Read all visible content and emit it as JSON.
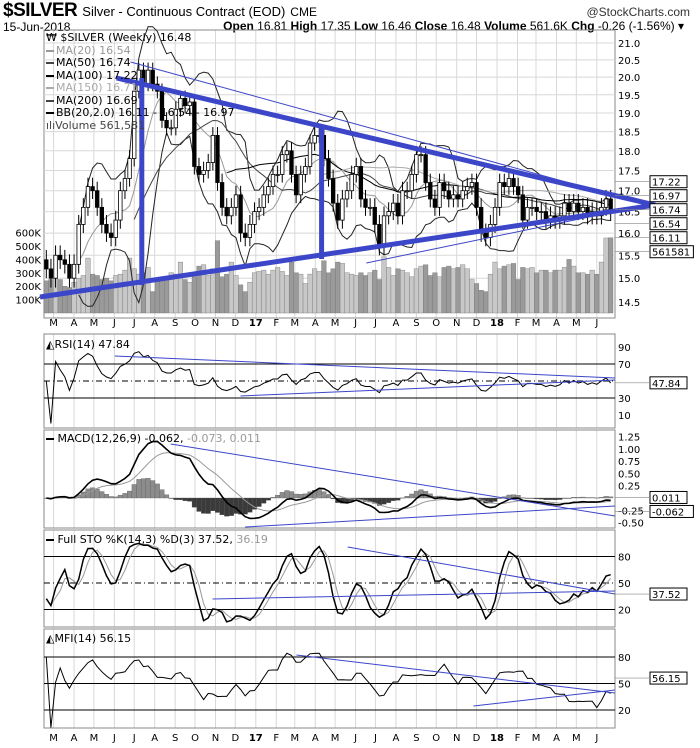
{
  "header": {
    "symbol": "$SILVER",
    "description": "Silver - Continuous Contract (EOD)",
    "exchange": "CME",
    "brand": "@StockCharts.com",
    "date": "15-Jun-2018",
    "open_label": "Open",
    "open": "16.81",
    "high_label": "High",
    "high": "17.35",
    "low_label": "Low",
    "low": "16.46",
    "close_label": "Close",
    "close": "16.48",
    "volume_label": "Volume",
    "volume": "561.6K",
    "chg_label": "Chg",
    "chg": "-0.26 (-1.56%)",
    "menu_icon": "caret-down-icon"
  },
  "legend": {
    "price": "$SILVER (Weekly) 16.48",
    "ma20": "MA(20) 16.54",
    "ma50": "MA(50) 16.74",
    "ma100": "MA(100) 17.22",
    "ma150": "MA(150) 16.71",
    "ma200": "MA(200) 16.69",
    "bb": "BB(20,2.0) 16.11 - 16.54 - 16.97",
    "volume": "Volume 561,581"
  },
  "colors": {
    "trendline": "#3c46c8",
    "grid": "#d8d8d8",
    "up": "#ffffff",
    "down": "#000000",
    "volume_light": "#c8c8c8",
    "volume_dark": "#9a9a9a",
    "macd_hist_pos": "#8c8c8c",
    "macd_hist_neg": "#3a3a3a"
  },
  "chart_data": [
    {
      "type": "candlestick",
      "title": "$SILVER Silver - Continuous Contract (EOD) CME",
      "frequency": "Weekly",
      "start_week": "2016-02-19",
      "end_week": "2018-06-15",
      "yscale": "log",
      "ylim": [
        14.3,
        21.3
      ],
      "price_ticks": [
        "14.5",
        "15.0",
        "15.5",
        "16.0",
        "16.5",
        "17.0",
        "17.5",
        "18.0",
        "18.5",
        "19.0",
        "19.5",
        "20.0",
        "20.5",
        "21.0"
      ],
      "volume_ticks": [
        "100K",
        "200K",
        "300K",
        "400K",
        "500K",
        "600K"
      ],
      "closes": [
        15.2,
        15.0,
        15.5,
        15.4,
        15.3,
        15.0,
        15.3,
        16.2,
        16.6,
        17.1,
        17.0,
        16.6,
        16.2,
        16.0,
        15.9,
        16.3,
        17.0,
        17.3,
        17.8,
        19.6,
        20.2,
        19.8,
        20.2,
        19.8,
        19.6,
        18.8,
        18.6,
        18.6,
        19.1,
        19.4,
        19.2,
        19.3,
        17.6,
        17.4,
        17.5,
        17.7,
        18.4,
        17.2,
        16.6,
        16.4,
        16.6,
        16.9,
        16.0,
        15.9,
        16.2,
        16.5,
        16.6,
        16.9,
        17.1,
        17.4,
        17.4,
        17.9,
        18.0,
        17.4,
        16.9,
        17.4,
        17.6,
        18.2,
        18.4,
        18.4,
        17.8,
        17.3,
        16.7,
        16.3,
        16.8,
        17.0,
        17.4,
        17.6,
        16.8,
        16.6,
        16.6,
        16.2,
        15.7,
        16.4,
        16.5,
        16.7,
        16.4,
        17.0,
        17.0,
        17.4,
        17.9,
        17.9,
        17.2,
        16.8,
        16.6,
        17.2,
        17.0,
        16.8,
        16.9,
        16.8,
        17.0,
        17.1,
        17.2,
        16.6,
        16.0,
        15.9,
        16.2,
        16.6,
        17.2,
        17.1,
        17.3,
        17.1,
        16.9,
        16.3,
        16.6,
        16.6,
        16.5,
        16.5,
        16.3,
        16.4,
        16.3,
        16.4,
        16.7,
        16.5,
        16.7,
        16.5,
        16.6,
        16.4,
        16.5,
        16.4,
        16.6,
        16.8,
        16.48
      ],
      "volume_k": [
        240,
        250,
        260,
        250,
        200,
        190,
        230,
        260,
        280,
        410,
        290,
        280,
        250,
        260,
        240,
        280,
        290,
        320,
        410,
        330,
        290,
        300,
        340,
        160,
        260,
        250,
        270,
        300,
        290,
        380,
        250,
        230,
        270,
        350,
        360,
        280,
        330,
        540,
        270,
        290,
        380,
        280,
        210,
        160,
        230,
        300,
        310,
        320,
        290,
        320,
        340,
        310,
        280,
        380,
        300,
        290,
        220,
        290,
        330,
        310,
        390,
        300,
        330,
        380,
        370,
        300,
        290,
        280,
        300,
        280,
        300,
        320,
        250,
        420,
        340,
        280,
        330,
        320,
        300,
        270,
        330,
        350,
        360,
        280,
        300,
        270,
        340,
        350,
        330,
        340,
        360,
        330,
        250,
        220,
        170,
        160,
        290,
        380,
        330,
        350,
        360,
        370,
        250,
        340,
        330,
        340,
        300,
        320,
        320,
        300,
        320,
        320,
        340,
        400,
        350,
        300,
        300,
        290,
        320,
        290,
        380,
        560,
        561.6
      ],
      "last_value_tags": [
        "17.22",
        "16.97",
        "16.74",
        "16.54",
        "16.11",
        "561581"
      ],
      "months": [
        [
          "2016-03-01",
          "M"
        ],
        [
          "2016-04-01",
          "A"
        ],
        [
          "2016-05-01",
          "M"
        ],
        [
          "2016-06-01",
          "J"
        ],
        [
          "2016-07-01",
          "J"
        ],
        [
          "2016-08-01",
          "A"
        ],
        [
          "2016-09-01",
          "S"
        ],
        [
          "2016-10-01",
          "O"
        ],
        [
          "2016-11-01",
          "N"
        ],
        [
          "2016-12-01",
          "D"
        ],
        [
          "2017-01-01",
          "17"
        ],
        [
          "2017-02-01",
          "F"
        ],
        [
          "2017-03-01",
          "M"
        ],
        [
          "2017-04-01",
          "A"
        ],
        [
          "2017-05-01",
          "M"
        ],
        [
          "2017-06-01",
          "J"
        ],
        [
          "2017-07-01",
          "J"
        ],
        [
          "2017-08-01",
          "A"
        ],
        [
          "2017-09-01",
          "S"
        ],
        [
          "2017-10-01",
          "O"
        ],
        [
          "2017-11-01",
          "N"
        ],
        [
          "2017-12-01",
          "D"
        ],
        [
          "2018-01-01",
          "18"
        ],
        [
          "2018-02-01",
          "F"
        ],
        [
          "2018-03-01",
          "M"
        ],
        [
          "2018-04-01",
          "A"
        ],
        [
          "2018-05-01",
          "M"
        ],
        [
          "2018-06-01",
          "J"
        ]
      ]
    },
    {
      "type": "line",
      "title": "RSI(14) 47.84",
      "ylim": [
        0,
        100
      ],
      "ticks": [
        "10",
        "30",
        "70",
        "90"
      ],
      "last": "47.84"
    },
    {
      "type": "line",
      "title": "MACD(12,26,9)",
      "values_text": [
        "-0.062",
        "-0.073, 0.011"
      ],
      "ylim": [
        -0.6,
        1.3
      ],
      "ticks": [
        "1.25",
        "1.00",
        "0.75",
        "0.50",
        "0.25",
        "-0.25",
        "-0.50"
      ],
      "last_tags": [
        "0.011",
        "-0.062"
      ]
    },
    {
      "type": "line",
      "title": "Full STO %K(14,3) %D(3)",
      "values_text": [
        "37.52,",
        "36.19"
      ],
      "ylim": [
        0,
        100
      ],
      "ticks": [
        "20",
        "50",
        "80"
      ],
      "last": "37.52"
    },
    {
      "type": "line",
      "title": "MFI(14) 56.15",
      "ylim": [
        0,
        100
      ],
      "ticks": [
        "20",
        "50",
        "80"
      ],
      "last": "56.15"
    }
  ]
}
